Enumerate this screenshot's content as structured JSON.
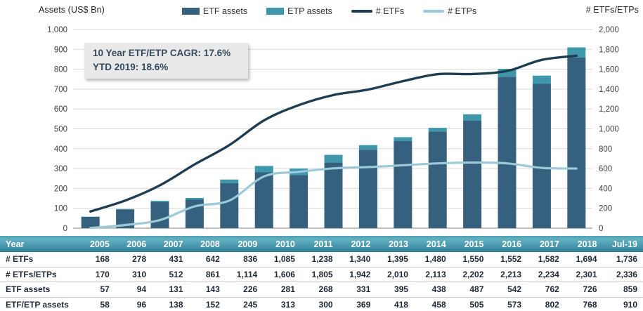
{
  "header": {
    "left_axis_title": "Assets (US$ Bn)",
    "right_axis_title": "# ETFs/ETPs"
  },
  "legend": [
    {
      "label": "ETF assets",
      "swatch": "box",
      "color": "#35617F"
    },
    {
      "label": "ETP assets",
      "swatch": "box",
      "color": "#3F97AC"
    },
    {
      "label": "# ETFs",
      "swatch": "line",
      "color": "#1E3D52"
    },
    {
      "label": "# ETPs",
      "swatch": "line",
      "color": "#9CCAD9"
    }
  ],
  "annotation": {
    "line1": "10 Year ETF/ETP CAGR: 17.6%",
    "line2": "YTD 2019: 18.6%"
  },
  "chart_data": {
    "type": "bar+line combo (stacked bars on left axis, lines on right axis)",
    "categories": [
      "2005",
      "2006",
      "2007",
      "2008",
      "2009",
      "2010",
      "2011",
      "2012",
      "2013",
      "2014",
      "2015",
      "2016",
      "2017",
      "2018",
      "Jul-19"
    ],
    "series": [
      {
        "name": "ETF assets",
        "type": "bar",
        "axis": "left",
        "color": "#35617F",
        "values": [
          57,
          94,
          131,
          143,
          226,
          281,
          268,
          331,
          395,
          438,
          487,
          542,
          762,
          726,
          859
        ]
      },
      {
        "name": "ETP assets (segment stacked on top of ETF assets; total ETF/ETP assets minus ETF assets)",
        "type": "bar",
        "axis": "left",
        "color": "#3F97AC",
        "values": [
          1,
          2,
          7,
          9,
          19,
          32,
          32,
          38,
          23,
          20,
          18,
          31,
          40,
          42,
          51
        ]
      },
      {
        "name": "# ETFs",
        "type": "line",
        "axis": "right",
        "color": "#1E3D52",
        "values": [
          168,
          278,
          431,
          642,
          836,
          1085,
          1238,
          1340,
          1395,
          1480,
          1550,
          1552,
          1582,
          1694,
          1736
        ]
      },
      {
        "name": "# ETPs",
        "type": "line",
        "axis": "right",
        "color": "#9CCAD9",
        "values": [
          2,
          32,
          81,
          219,
          278,
          521,
          567,
          602,
          615,
          633,
          652,
          661,
          652,
          607,
          600
        ]
      }
    ],
    "bar_totals_etf_etp_assets": [
      58,
      96,
      138,
      152,
      245,
      313,
      300,
      369,
      418,
      458,
      505,
      573,
      802,
      768,
      910
    ],
    "left_axis": {
      "title": "Assets (US$ Bn)",
      "min": 0,
      "max": 1000,
      "step": 100
    },
    "right_axis": {
      "title": "# ETFs/ETPs",
      "min": 0,
      "max": 2000,
      "step": 200
    },
    "grid": true,
    "legend_position": "top-center",
    "annotation": "10 Year ETF/ETP CAGR: 17.6% | YTD 2019: 18.6%"
  },
  "table": {
    "header": [
      "Year",
      "2005",
      "2006",
      "2007",
      "2008",
      "2009",
      "2010",
      "2011",
      "2012",
      "2013",
      "2014",
      "2015",
      "2016",
      "2017",
      "2018",
      "Jul-19"
    ],
    "rows": [
      {
        "label": "# ETFs",
        "values": [
          "168",
          "278",
          "431",
          "642",
          "836",
          "1,085",
          "1,238",
          "1,340",
          "1,395",
          "1,480",
          "1,550",
          "1,552",
          "1,582",
          "1,694",
          "1,736"
        ]
      },
      {
        "label": "# ETFs/ETPs",
        "values": [
          "170",
          "310",
          "512",
          "861",
          "1,114",
          "1,606",
          "1,805",
          "1,942",
          "2,010",
          "2,113",
          "2,202",
          "2,213",
          "2,234",
          "2,301",
          "2,336"
        ]
      },
      {
        "label": "ETF assets",
        "values": [
          "57",
          "94",
          "131",
          "143",
          "226",
          "281",
          "268",
          "331",
          "395",
          "438",
          "487",
          "542",
          "762",
          "726",
          "859"
        ]
      },
      {
        "label": "ETF/ETP assets",
        "values": [
          "58",
          "96",
          "138",
          "152",
          "245",
          "313",
          "300",
          "369",
          "418",
          "458",
          "505",
          "573",
          "802",
          "768",
          "910"
        ]
      }
    ]
  },
  "colors": {
    "grid_line": "#D9D9D9",
    "zero_line": "#ABABAB",
    "table_header_gradient_top": "#4DA0B3",
    "table_header_gradient_mid": "#63B1C2",
    "table_header_gradient_bottom": "#2F8099",
    "annotation_bg": "#E9E9E9",
    "annotation_text": "#35495C"
  }
}
